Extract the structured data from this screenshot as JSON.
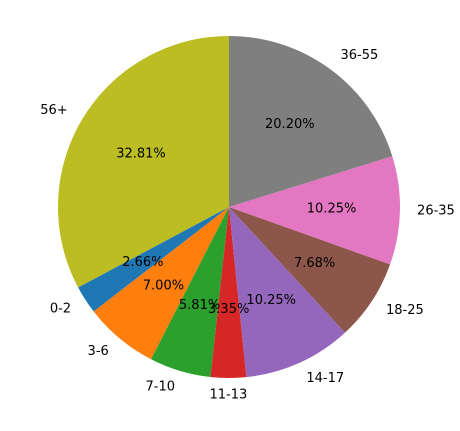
{
  "chart_data": {
    "type": "pie",
    "title": "",
    "start_angle_deg": 90,
    "direction": "counterclockwise",
    "legend": "none",
    "categories": [
      "56+",
      "0-2",
      "3-6",
      "7-10",
      "11-13",
      "14-17",
      "18-25",
      "26-35",
      "36-55"
    ],
    "values": [
      32.81,
      2.66,
      7.0,
      5.81,
      3.35,
      10.25,
      7.68,
      10.25,
      20.2
    ],
    "percent_labels": [
      "32.81%",
      "2.66%",
      "7.00%",
      "5.81%",
      "3.35%",
      "10.25%",
      "7.68%",
      "10.25%",
      "20.20%"
    ],
    "colors": [
      "#bcbd22",
      "#1f77b4",
      "#ff7f0e",
      "#2ca02c",
      "#d62728",
      "#9467bd",
      "#8c564b",
      "#e377c2",
      "#7f7f7f"
    ]
  }
}
